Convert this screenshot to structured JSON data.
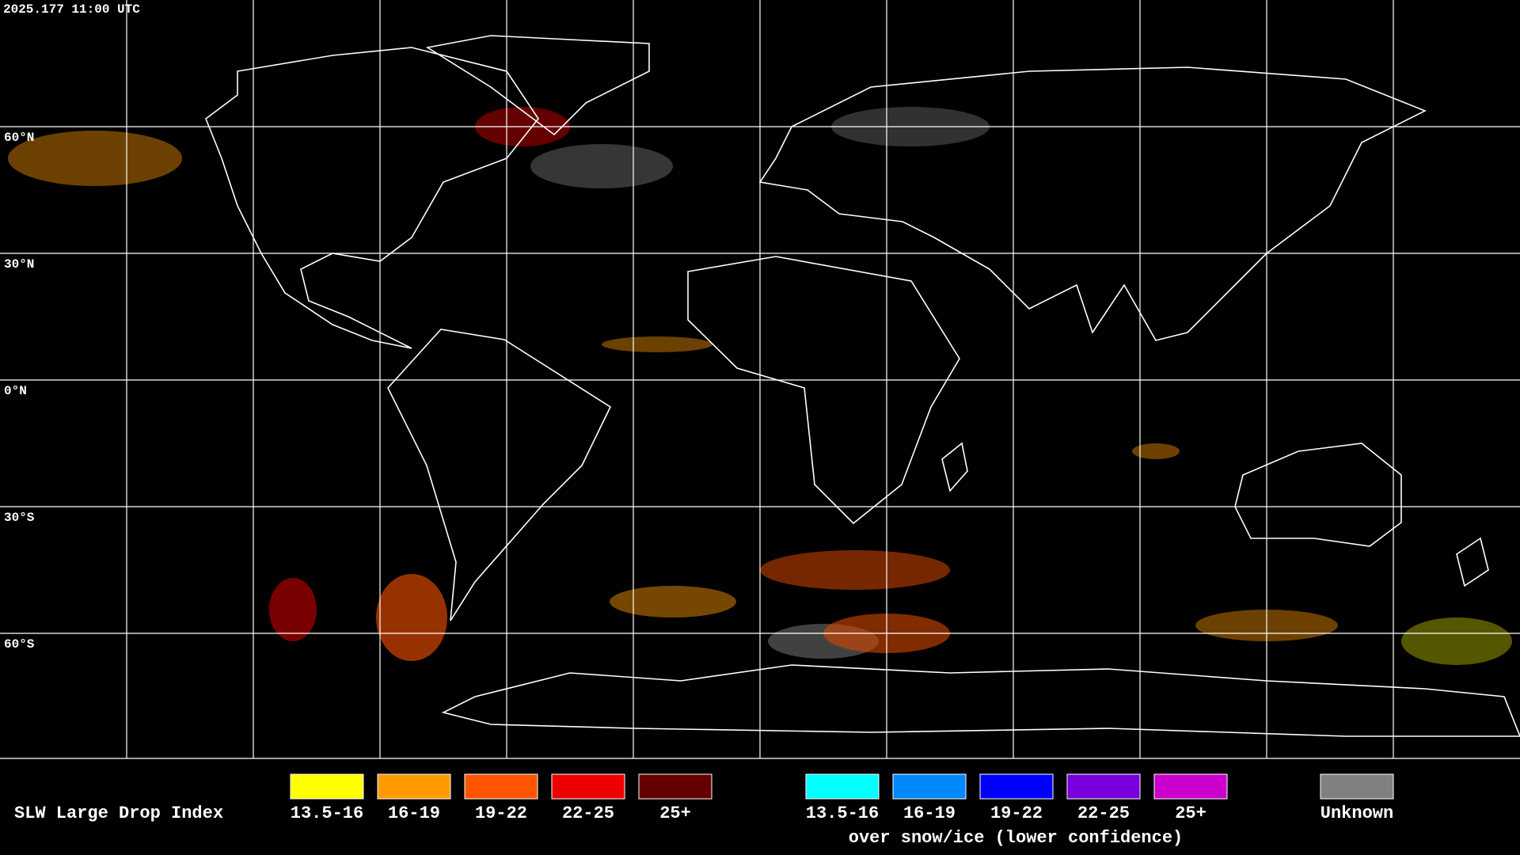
{
  "header": {
    "timestamp": "2025.177 11:00 UTC"
  },
  "map": {
    "latitude_labels": [
      "60°N",
      "30°N",
      "0°N",
      "30°S",
      "60°S"
    ]
  },
  "legend": {
    "title": "SLW Large Drop Index",
    "items": [
      {
        "label": "13.5-16",
        "color": "#ffff00"
      },
      {
        "label": "16-19",
        "color": "#ff9900"
      },
      {
        "label": "19-22",
        "color": "#ff5500"
      },
      {
        "label": "22-25",
        "color": "#ee0000"
      },
      {
        "label": "25+",
        "color": "#660000"
      }
    ],
    "snow_ice_items": [
      {
        "label": "13.5-16",
        "color": "#00ffff"
      },
      {
        "label": "16-19",
        "color": "#0088ff"
      },
      {
        "label": "19-22",
        "color": "#0000ff"
      },
      {
        "label": "22-25",
        "color": "#7700dd"
      },
      {
        "label": "25+",
        "color": "#cc00cc"
      }
    ],
    "snow_ice_caption": "over snow/ice (lower confidence)",
    "unknown": {
      "label": "Unknown",
      "color": "#808080"
    }
  }
}
